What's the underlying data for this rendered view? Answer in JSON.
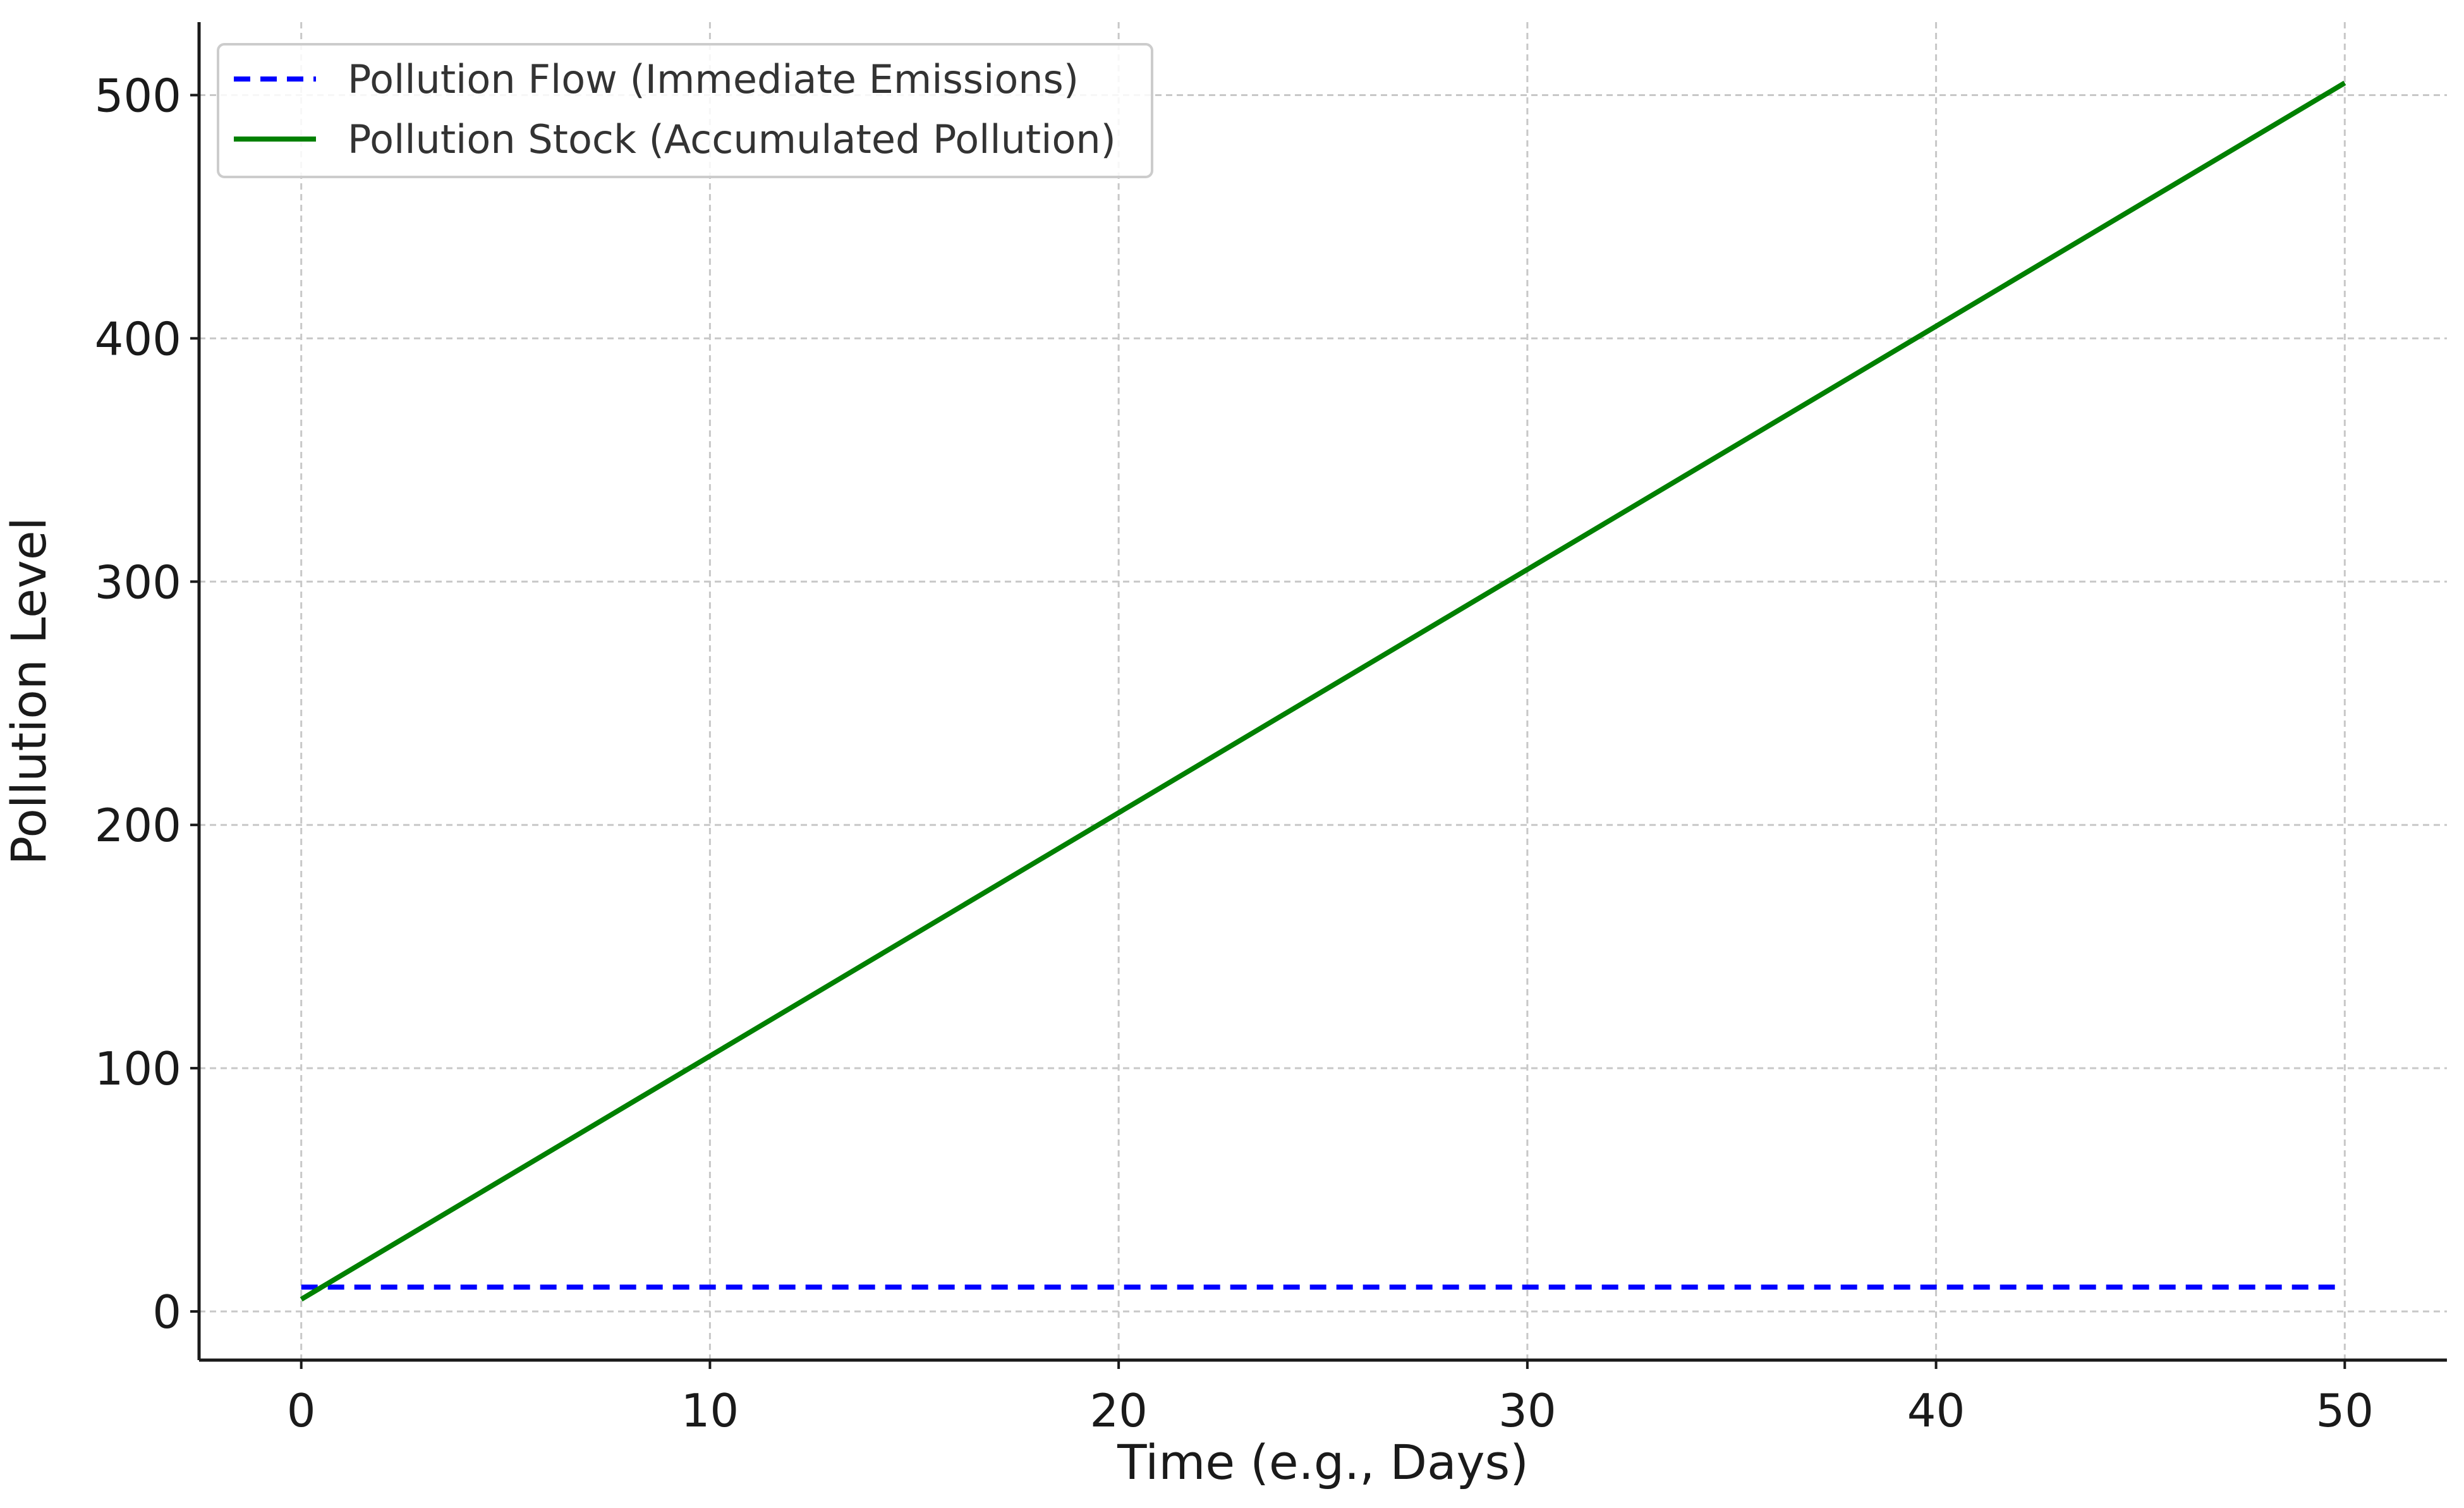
{
  "chart_data": {
    "type": "line",
    "xlabel": "Time (e.g., Days)",
    "ylabel": "Pollution Level",
    "xlim": [
      -2.5,
      52.5
    ],
    "ylim": [
      -20,
      530
    ],
    "xticks": [
      0,
      10,
      20,
      30,
      40,
      50
    ],
    "yticks": [
      0,
      100,
      200,
      300,
      400,
      500
    ],
    "grid": true,
    "legend_position": "top-left",
    "series": [
      {
        "name": "Pollution Flow (Immediate Emissions)",
        "color": "#0000ff",
        "style": "dashed",
        "x": [
          0,
          50
        ],
        "y": [
          10,
          10
        ]
      },
      {
        "name": "Pollution Stock (Accumulated Pollution)",
        "color": "#008000",
        "style": "solid",
        "x": [
          0,
          50
        ],
        "y": [
          5,
          505
        ]
      }
    ]
  }
}
